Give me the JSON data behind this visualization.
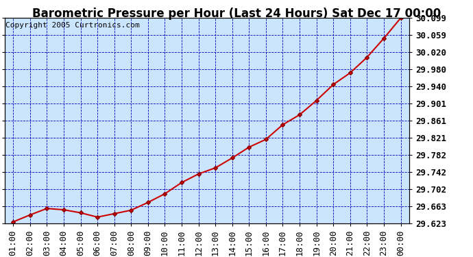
{
  "title": "Barometric Pressure per Hour (Last 24 Hours) Sat Dec 17 00:00",
  "copyright": "Copyright 2005 Curtronics.com",
  "x_labels": [
    "01:00",
    "02:00",
    "03:00",
    "04:00",
    "05:00",
    "06:00",
    "07:00",
    "08:00",
    "09:00",
    "10:00",
    "11:00",
    "12:00",
    "13:00",
    "14:00",
    "15:00",
    "16:00",
    "17:00",
    "18:00",
    "19:00",
    "20:00",
    "21:00",
    "22:00",
    "23:00",
    "00:00"
  ],
  "y_values": [
    29.627,
    29.643,
    29.658,
    29.655,
    29.648,
    29.638,
    29.646,
    29.654,
    29.672,
    29.692,
    29.718,
    29.738,
    29.752,
    29.775,
    29.8,
    29.818,
    29.852,
    29.875,
    29.908,
    29.945,
    29.972,
    30.008,
    30.052,
    30.099
  ],
  "y_tick_labels": [
    "29.623",
    "29.663",
    "29.702",
    "29.742",
    "29.782",
    "29.821",
    "29.861",
    "29.901",
    "29.940",
    "29.980",
    "30.020",
    "30.059",
    "30.099"
  ],
  "y_tick_values": [
    29.623,
    29.663,
    29.702,
    29.742,
    29.782,
    29.821,
    29.861,
    29.901,
    29.94,
    29.98,
    30.02,
    30.059,
    30.099
  ],
  "y_min": 29.623,
  "y_max": 30.099,
  "line_color": "#cc0000",
  "marker_color": "#880000",
  "bg_color": "#cce5ff",
  "grid_color": "#0000bb",
  "title_fontsize": 12,
  "tick_fontsize": 9,
  "copyright_fontsize": 8
}
